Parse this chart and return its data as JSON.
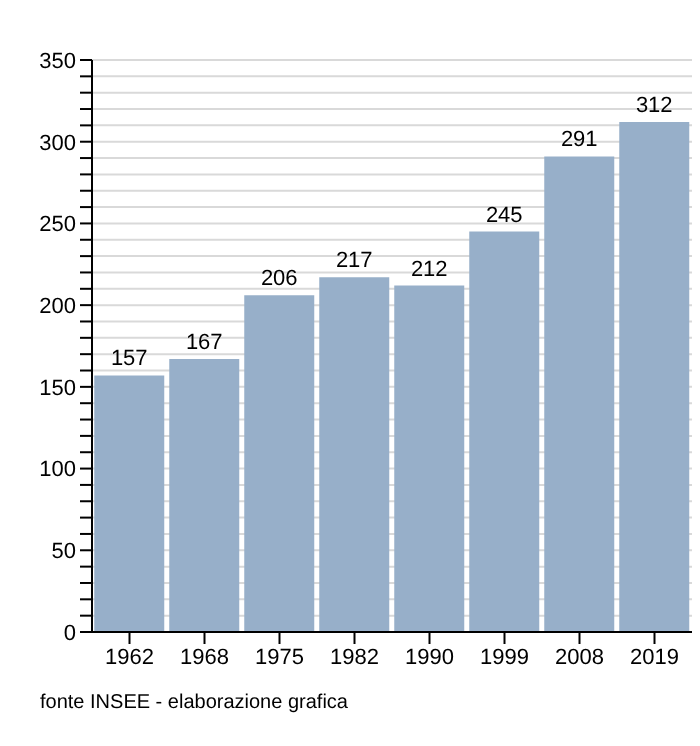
{
  "chart_data": {
    "type": "bar",
    "categories": [
      "1962",
      "1968",
      "1975",
      "1982",
      "1990",
      "1999",
      "2008",
      "2019"
    ],
    "values": [
      157,
      167,
      206,
      217,
      212,
      245,
      291,
      312
    ],
    "color": "#97afc9",
    "data_labels": true,
    "grid": "y",
    "ylim": [
      0,
      350
    ],
    "yticks": [
      0,
      {
        "value": 10,
        "label": null
      },
      {
        "value": 20,
        "label": null
      },
      {
        "value": 30,
        "label": null
      },
      {
        "value": 40,
        "label": null
      },
      50,
      {
        "value": 60,
        "label": null
      },
      {
        "value": 70,
        "label": null
      },
      {
        "value": 80,
        "label": null
      },
      {
        "value": 90,
        "label": null
      },
      100,
      {
        "value": 110,
        "label": null
      },
      {
        "value": 120,
        "label": null
      },
      {
        "value": 130,
        "label": null
      },
      {
        "value": 140,
        "label": null
      },
      150,
      {
        "value": 160,
        "label": null
      },
      {
        "value": 170,
        "label": null
      },
      {
        "value": 180,
        "label": null
      },
      {
        "value": 190,
        "label": null
      },
      200,
      {
        "value": 210,
        "label": null
      },
      {
        "value": 220,
        "label": null
      },
      {
        "value": 230,
        "label": null
      },
      {
        "value": 240,
        "label": null
      },
      250,
      {
        "value": 260,
        "label": null
      },
      {
        "value": 270,
        "label": null
      },
      {
        "value": 280,
        "label": null
      },
      {
        "value": 290,
        "label": null
      },
      300,
      {
        "value": 310,
        "label": null
      },
      {
        "value": 320,
        "label": null
      },
      {
        "value": 330,
        "label": null
      },
      {
        "value": 340,
        "label": null
      },
      350
    ],
    "annotations": [
      "fonte INSEE - elaborazione grafica"
    ]
  }
}
